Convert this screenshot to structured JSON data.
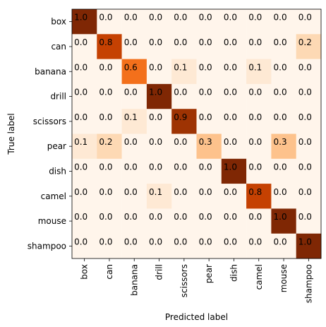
{
  "chart_data": {
    "type": "heatmap",
    "xlabel": "Predicted label",
    "ylabel": "True label",
    "x_categories": [
      "box",
      "can",
      "banana",
      "drill",
      "scissors",
      "pear",
      "dish",
      "camel",
      "mouse",
      "shampoo"
    ],
    "y_categories": [
      "box",
      "can",
      "banana",
      "drill",
      "scissors",
      "pear",
      "dish",
      "camel",
      "mouse",
      "shampoo"
    ],
    "values": [
      [
        1.0,
        0.0,
        0.0,
        0.0,
        0.0,
        0.0,
        0.0,
        0.0,
        0.0,
        0.0
      ],
      [
        0.0,
        0.8,
        0.0,
        0.0,
        0.0,
        0.0,
        0.0,
        0.0,
        0.0,
        0.2
      ],
      [
        0.0,
        0.0,
        0.6,
        0.0,
        0.1,
        0.0,
        0.0,
        0.1,
        0.0,
        0.0
      ],
      [
        0.0,
        0.0,
        0.0,
        1.0,
        0.0,
        0.0,
        0.0,
        0.0,
        0.0,
        0.0
      ],
      [
        0.0,
        0.0,
        0.1,
        0.0,
        0.9,
        0.0,
        0.0,
        0.0,
        0.0,
        0.0
      ],
      [
        0.1,
        0.2,
        0.0,
        0.0,
        0.0,
        0.3,
        0.0,
        0.0,
        0.3,
        0.0
      ],
      [
        0.0,
        0.0,
        0.0,
        0.0,
        0.0,
        0.0,
        1.0,
        0.0,
        0.0,
        0.0
      ],
      [
        0.0,
        0.0,
        0.0,
        0.1,
        0.0,
        0.0,
        0.0,
        0.8,
        0.0,
        0.0
      ],
      [
        0.0,
        0.0,
        0.0,
        0.0,
        0.0,
        0.0,
        0.0,
        0.0,
        1.0,
        0.0
      ],
      [
        0.0,
        0.0,
        0.0,
        0.0,
        0.0,
        0.0,
        0.0,
        0.0,
        0.0,
        1.0
      ]
    ],
    "value_labels": [
      [
        "1.0",
        "0.0",
        "0.0",
        "0.0",
        "0.0",
        "0.0",
        "0.0",
        "0.0",
        "0.0",
        "0.0"
      ],
      [
        "0.0",
        "0.8",
        "0.0",
        "0.0",
        "0.0",
        "0.0",
        "0.0",
        "0.0",
        "0.0",
        "0.2"
      ],
      [
        "0.0",
        "0.0",
        "0.6",
        "0.0",
        "0.1",
        "0.0",
        "0.0",
        "0.1",
        "0.0",
        "0.0"
      ],
      [
        "0.0",
        "0.0",
        "0.0",
        "1.0",
        "0.0",
        "0.0",
        "0.0",
        "0.0",
        "0.0",
        "0.0"
      ],
      [
        "0.0",
        "0.0",
        "0.1",
        "0.0",
        "0.9",
        "0.0",
        "0.0",
        "0.0",
        "0.0",
        "0.0"
      ],
      [
        "0.1",
        "0.2",
        "0.0",
        "0.0",
        "0.0",
        "0.3",
        "0.0",
        "0.0",
        "0.3",
        "0.0"
      ],
      [
        "0.0",
        "0.0",
        "0.0",
        "0.0",
        "0.0",
        "0.0",
        "1.0",
        "0.0",
        "0.0",
        "0.0"
      ],
      [
        "0.0",
        "0.0",
        "0.0",
        "0.1",
        "0.0",
        "0.0",
        "0.0",
        "0.8",
        "0.0",
        "0.0"
      ],
      [
        "0.0",
        "0.0",
        "0.0",
        "0.0",
        "0.0",
        "0.0",
        "0.0",
        "0.0",
        "1.0",
        "0.0"
      ],
      [
        "0.0",
        "0.0",
        "0.0",
        "0.0",
        "0.0",
        "0.0",
        "0.0",
        "0.0",
        "0.0",
        "1.0"
      ]
    ],
    "value_range": [
      0.0,
      1.0
    ],
    "colormap": [
      "#fff5eb",
      "#fee6ce",
      "#fdd0a2",
      "#fdae6b",
      "#fd8d3c",
      "#f16913",
      "#d94801",
      "#a63603",
      "#7f2704"
    ],
    "text_color_light": "#ffffff",
    "text_color_dark": "#000000",
    "grid": false,
    "legend": false
  }
}
